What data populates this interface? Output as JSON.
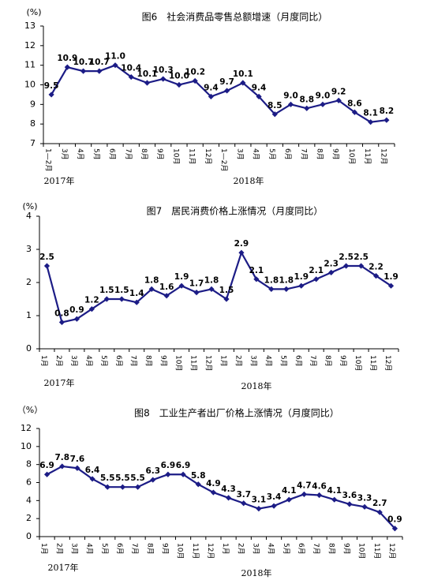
{
  "chart_data": [
    {
      "type": "line",
      "title": "图6　社会消费品零售总额增速（月度同比）",
      "y_label": "(%)",
      "categories": [
        "1—2月",
        "3月",
        "4月",
        "5月",
        "6月",
        "7月",
        "8月",
        "9月",
        "10月",
        "11月",
        "12月",
        "1—2月",
        "3月",
        "4月",
        "5月",
        "6月",
        "7月",
        "8月",
        "9月",
        "10月",
        "11月",
        "12月"
      ],
      "series": [
        {
          "name": "社会消费品零售总额增速",
          "color": "#1c1c86",
          "values": [
            9.5,
            10.9,
            10.7,
            10.7,
            11.0,
            10.4,
            10.1,
            10.3,
            10.0,
            10.2,
            9.4,
            9.7,
            10.1,
            9.4,
            8.5,
            9.0,
            8.8,
            9.0,
            9.2,
            8.6,
            8.1,
            8.2
          ],
          "value_labels": [
            "9.5",
            "10.9",
            "10.7",
            "10.7",
            "11.0",
            "10.4",
            "10.1",
            "10.3",
            "10.0",
            "10.2",
            "9.4",
            "9.7",
            "10.1",
            "9.4",
            "8.5",
            "9.0",
            "8.8",
            "9.0",
            "9.2",
            "8.6",
            "8.1",
            "8.2"
          ]
        }
      ],
      "ylim": [
        7,
        13
      ],
      "yticks": [
        7,
        8,
        9,
        10,
        11,
        12,
        13
      ],
      "grid": false,
      "annotations": [
        "2017年",
        "2018年"
      ]
    },
    {
      "type": "line",
      "title": "图7　居民消费价格上涨情况（月度同比）",
      "y_label": "(%)",
      "categories": [
        "1月",
        "2月",
        "3月",
        "4月",
        "5月",
        "6月",
        "7月",
        "8月",
        "9月",
        "10月",
        "11月",
        "12月",
        "1月",
        "2月",
        "3月",
        "4月",
        "5月",
        "6月",
        "7月",
        "8月",
        "9月",
        "10月",
        "11月",
        "12月"
      ],
      "series": [
        {
          "name": "居民消费价格上涨",
          "color": "#1c1c86",
          "values": [
            2.5,
            0.8,
            0.9,
            1.2,
            1.5,
            1.5,
            1.4,
            1.8,
            1.6,
            1.9,
            1.7,
            1.8,
            1.5,
            2.9,
            2.1,
            1.8,
            1.8,
            1.9,
            2.1,
            2.3,
            2.5,
            2.5,
            2.2,
            1.9
          ]
        }
      ],
      "ylim": [
        0,
        4
      ],
      "yticks": [
        0,
        1,
        2,
        3,
        4
      ],
      "grid": false,
      "annotations": [
        "2017年",
        "2018年"
      ]
    },
    {
      "type": "line",
      "title": "图8　工业生产者出厂价格上涨情况（月度同比）",
      "y_label": "（%）",
      "categories": [
        "1月",
        "2月",
        "3月",
        "4月",
        "5月",
        "6月",
        "7月",
        "8月",
        "9月",
        "10月",
        "11月",
        "12月",
        "1月",
        "2月",
        "3月",
        "4月",
        "5月",
        "6月",
        "7月",
        "8月",
        "9月",
        "10月",
        "11月",
        "12月"
      ],
      "series": [
        {
          "name": "工业生产者出厂价格上涨",
          "color": "#1c1c86",
          "values": [
            6.9,
            7.8,
            7.6,
            6.4,
            5.5,
            5.5,
            5.5,
            6.3,
            6.9,
            6.9,
            5.8,
            4.9,
            4.3,
            3.7,
            3.1,
            3.4,
            4.1,
            4.7,
            4.6,
            4.1,
            3.6,
            3.3,
            2.7,
            0.9
          ]
        }
      ],
      "ylim": [
        0,
        12
      ],
      "yticks": [
        0,
        2,
        4,
        6,
        8,
        10,
        12
      ],
      "grid": false,
      "annotations": [
        "2017年",
        "2018年"
      ]
    }
  ]
}
